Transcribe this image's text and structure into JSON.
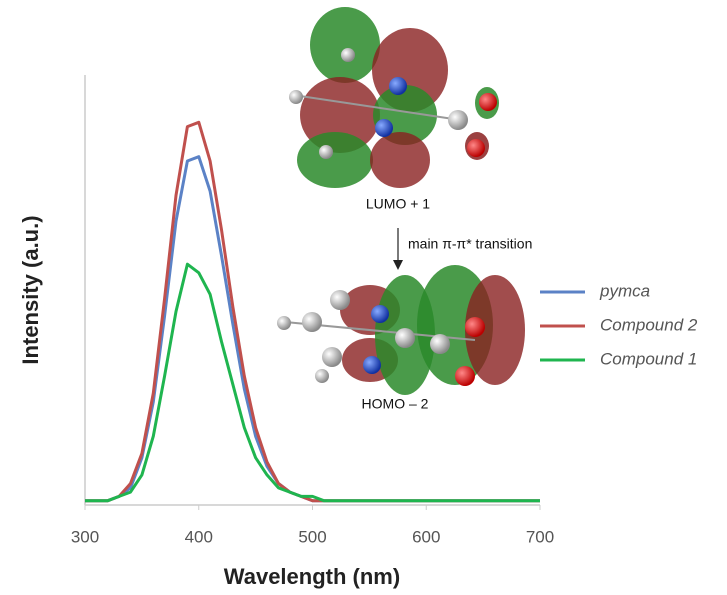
{
  "chart_data": {
    "type": "line",
    "xlabel": "Wavelength (nm)",
    "ylabel": "Intensity (a.u.)",
    "x": [
      300,
      310,
      320,
      330,
      340,
      350,
      360,
      370,
      380,
      390,
      400,
      410,
      420,
      430,
      440,
      450,
      460,
      470,
      480,
      490,
      500,
      510,
      520,
      530,
      540,
      550,
      560,
      570,
      580,
      590,
      600,
      610,
      620,
      630,
      640,
      650,
      660,
      670,
      680,
      690,
      700
    ],
    "series": [
      {
        "name": "pymca",
        "color": "#5b82c6",
        "values": [
          0.01,
          0.01,
          0.01,
          0.02,
          0.04,
          0.11,
          0.24,
          0.44,
          0.66,
          0.8,
          0.81,
          0.73,
          0.58,
          0.42,
          0.27,
          0.16,
          0.09,
          0.05,
          0.03,
          0.02,
          0.01,
          0.01,
          0.01,
          0.01,
          0.01,
          0.01,
          0.01,
          0.01,
          0.01,
          0.01,
          0.01,
          0.01,
          0.01,
          0.01,
          0.01,
          0.01,
          0.01,
          0.01,
          0.01,
          0.01,
          0.01
        ]
      },
      {
        "name": "Compound 2",
        "color": "#c0504d",
        "values": [
          0.01,
          0.01,
          0.01,
          0.02,
          0.05,
          0.12,
          0.26,
          0.48,
          0.72,
          0.88,
          0.89,
          0.8,
          0.64,
          0.46,
          0.3,
          0.18,
          0.1,
          0.05,
          0.03,
          0.02,
          0.01,
          0.01,
          0.01,
          0.01,
          0.01,
          0.01,
          0.01,
          0.01,
          0.01,
          0.01,
          0.01,
          0.01,
          0.01,
          0.01,
          0.01,
          0.01,
          0.01,
          0.01,
          0.01,
          0.01,
          0.01
        ]
      },
      {
        "name": "Compound 1",
        "color": "#1fb54f",
        "values": [
          0.01,
          0.01,
          0.01,
          0.02,
          0.03,
          0.07,
          0.16,
          0.3,
          0.45,
          0.56,
          0.54,
          0.49,
          0.38,
          0.28,
          0.18,
          0.11,
          0.07,
          0.04,
          0.03,
          0.02,
          0.02,
          0.01,
          0.01,
          0.01,
          0.01,
          0.01,
          0.01,
          0.01,
          0.01,
          0.01,
          0.01,
          0.01,
          0.01,
          0.01,
          0.01,
          0.01,
          0.01,
          0.01,
          0.01,
          0.01,
          0.01
        ]
      }
    ],
    "xlim": [
      300,
      700
    ],
    "xticks": [
      300,
      400,
      500,
      600,
      700
    ],
    "ylim": [
      0,
      1
    ],
    "annotations": [
      "LUMO + 1",
      "main π-π* transition",
      "HOMO – 2"
    ]
  }
}
